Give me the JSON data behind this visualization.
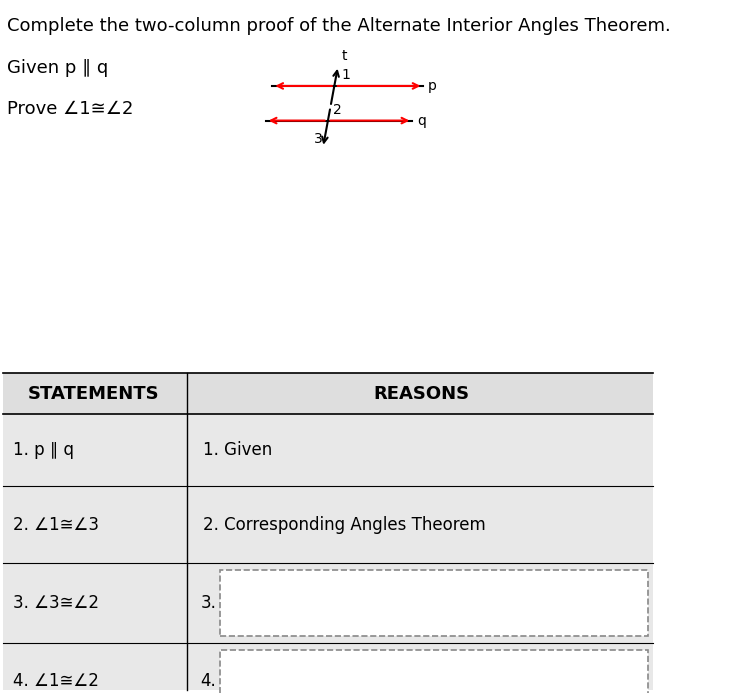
{
  "title": "Complete the two-column proof of the Alternate Interior Angles Theorem.",
  "given_text": "Given p ∥ q",
  "prove_text": "Prove ∠1≅∠2",
  "header_row": [
    "STATEMENTS",
    "REASONS"
  ],
  "rows": [
    [
      "1. p ∥ q",
      "1. Given"
    ],
    [
      "2. ∠1≅∠3",
      "2. Corresponding Angles Theorem"
    ],
    [
      "3. ∠3≅∠2",
      "3."
    ],
    [
      "4. ∠1≅∠2",
      "4."
    ]
  ],
  "col_split": 0.285,
  "font_size_title": 13,
  "font_size_body": 12,
  "font_size_header": 13
}
